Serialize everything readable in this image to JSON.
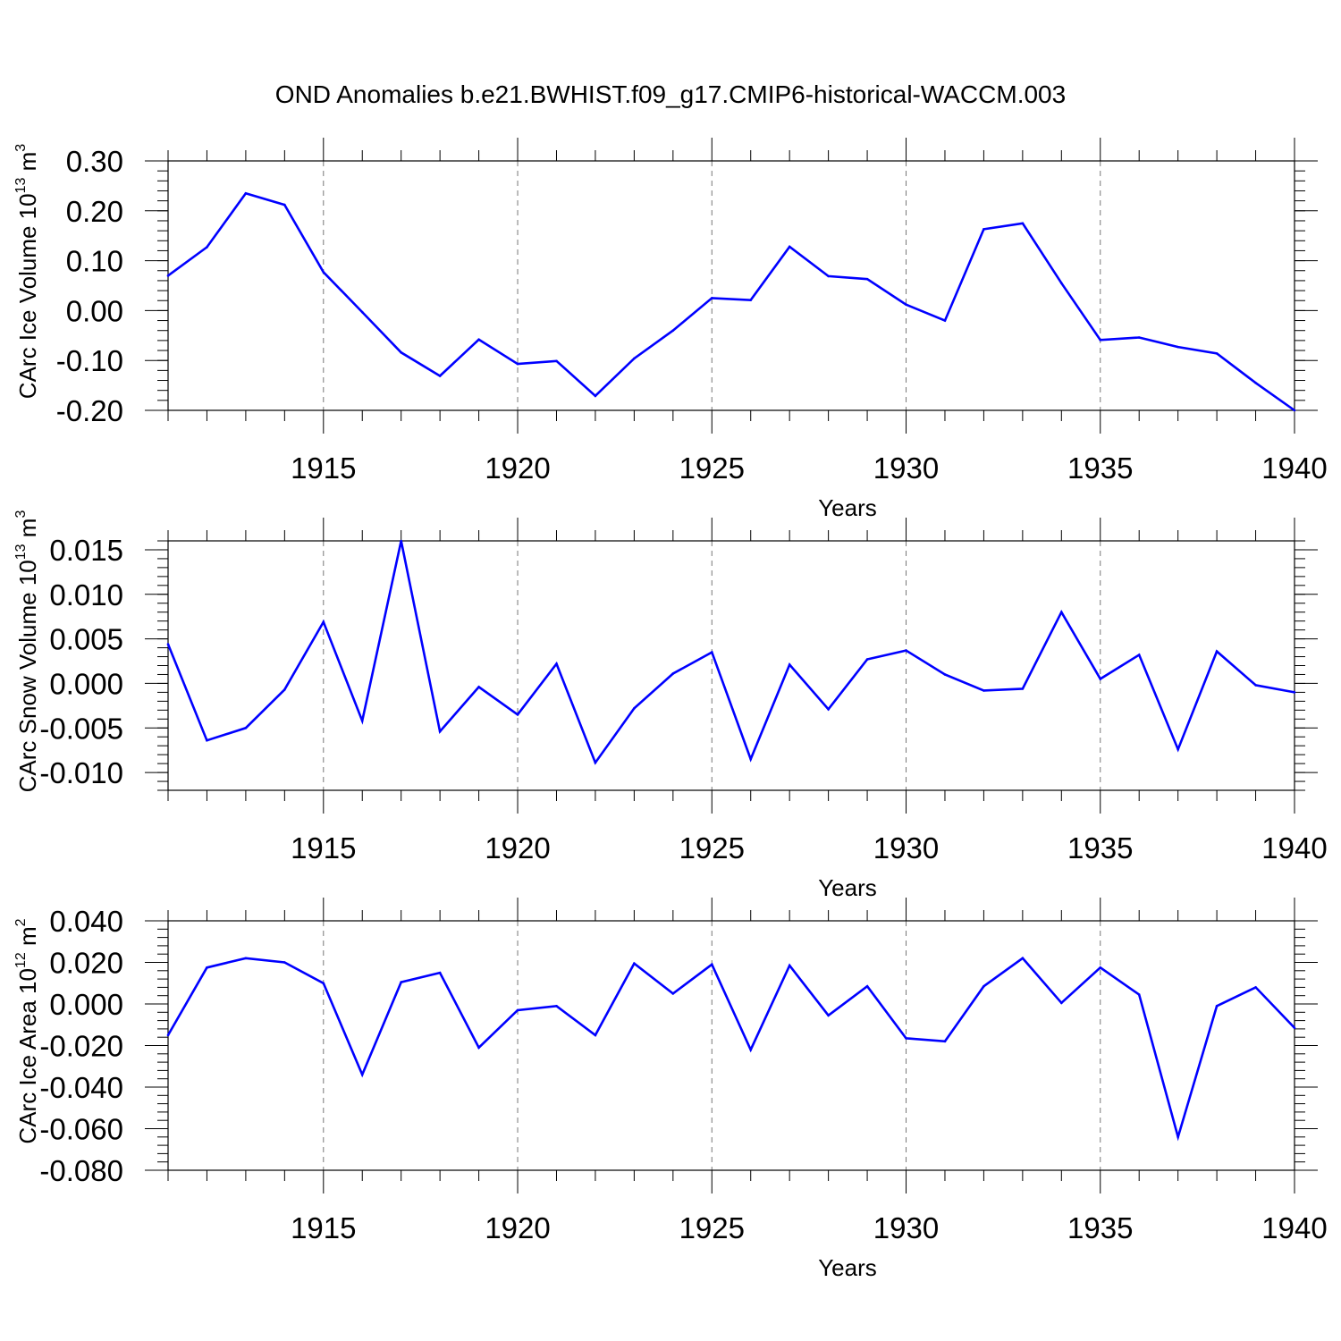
{
  "figure_title": "OND Anomalies b.e21.BWHIST.f09_g17.CMIP6-historical-WACCM.003",
  "line_color": "#0000ff",
  "chart_data": [
    {
      "type": "line",
      "title": "OND Anomalies b.e21.BWHIST.f09_g17.CMIP6-historical-WACCM.003",
      "xlabel": "Years",
      "ylabel": "CArc Ice Volume 10",
      "ylabel_exponent": "13",
      "ylabel_unit": " m",
      "ylabel_unit_exponent": "3",
      "xlim": [
        1911,
        1940
      ],
      "ylim": [
        -0.2,
        0.3
      ],
      "xticks": [
        1915,
        1920,
        1925,
        1930,
        1935,
        1940
      ],
      "xtick_labels": [
        "1915",
        "1920",
        "1925",
        "1930",
        "1935",
        "1940"
      ],
      "yticks": [
        -0.2,
        -0.1,
        0.0,
        0.1,
        0.2,
        0.3
      ],
      "ytick_labels": [
        "-0.20",
        "-0.10",
        "0.00",
        "0.10",
        "0.20",
        "0.30"
      ],
      "x": [
        1911,
        1912,
        1913,
        1914,
        1915,
        1916,
        1917,
        1918,
        1919,
        1920,
        1921,
        1922,
        1923,
        1924,
        1925,
        1926,
        1927,
        1928,
        1929,
        1930,
        1931,
        1932,
        1933,
        1934,
        1935,
        1936,
        1937,
        1938,
        1939,
        1940
      ],
      "values": [
        0.07,
        0.127,
        0.235,
        0.212,
        0.077,
        -0.003,
        -0.084,
        -0.131,
        -0.058,
        -0.107,
        -0.101,
        -0.171,
        -0.096,
        -0.04,
        0.025,
        0.021,
        0.128,
        0.069,
        0.063,
        0.012,
        -0.02,
        0.163,
        0.175,
        0.055,
        -0.059,
        -0.054,
        -0.073,
        -0.086,
        -0.145,
        -0.2
      ]
    },
    {
      "type": "line",
      "xlabel": "Years",
      "ylabel": "CArc Snow Volume 10",
      "ylabel_exponent": "13",
      "ylabel_unit": " m",
      "ylabel_unit_exponent": "3",
      "xlim": [
        1911,
        1940
      ],
      "ylim": [
        -0.012,
        0.016
      ],
      "xticks": [
        1915,
        1920,
        1925,
        1930,
        1935,
        1940
      ],
      "xtick_labels": [
        "1915",
        "1920",
        "1925",
        "1930",
        "1935",
        "1940"
      ],
      "yticks": [
        -0.01,
        -0.005,
        0.0,
        0.005,
        0.01,
        0.015
      ],
      "ytick_labels": [
        "-0.010",
        "-0.005",
        "0.000",
        "0.005",
        "0.010",
        "0.015"
      ],
      "x": [
        1911,
        1912,
        1913,
        1914,
        1915,
        1916,
        1917,
        1918,
        1919,
        1920,
        1921,
        1922,
        1923,
        1924,
        1925,
        1926,
        1927,
        1928,
        1929,
        1930,
        1931,
        1932,
        1933,
        1934,
        1935,
        1936,
        1937,
        1938,
        1939,
        1940
      ],
      "values": [
        0.0044,
        -0.0064,
        -0.005,
        -0.0007,
        0.0069,
        -0.0042,
        0.016,
        -0.0054,
        -0.0004,
        -0.0035,
        0.0022,
        -0.0089,
        -0.0028,
        0.0011,
        0.0035,
        -0.0085,
        0.0021,
        -0.0029,
        0.0027,
        0.0037,
        0.001,
        -0.0008,
        -0.0006,
        0.008,
        0.0005,
        0.0032,
        -0.0074,
        0.0036,
        -0.0002,
        -0.001
      ]
    },
    {
      "type": "line",
      "xlabel": "Years",
      "ylabel": "CArc Ice Area 10",
      "ylabel_exponent": "12",
      "ylabel_unit": " m",
      "ylabel_unit_exponent": "2",
      "xlim": [
        1911,
        1940
      ],
      "ylim": [
        -0.08,
        0.04
      ],
      "xticks": [
        1915,
        1920,
        1925,
        1930,
        1935,
        1940
      ],
      "xtick_labels": [
        "1915",
        "1920",
        "1925",
        "1930",
        "1935",
        "1940"
      ],
      "yticks": [
        -0.08,
        -0.06,
        -0.04,
        -0.02,
        0.0,
        0.02,
        0.04
      ],
      "ytick_labels": [
        "-0.080",
        "-0.060",
        "-0.040",
        "-0.020",
        "0.000",
        "0.020",
        "0.040"
      ],
      "x": [
        1911,
        1912,
        1913,
        1914,
        1915,
        1916,
        1917,
        1918,
        1919,
        1920,
        1921,
        1922,
        1923,
        1924,
        1925,
        1926,
        1927,
        1928,
        1929,
        1930,
        1931,
        1932,
        1933,
        1934,
        1935,
        1936,
        1937,
        1938,
        1939,
        1940
      ],
      "values": [
        -0.015,
        0.0175,
        0.022,
        0.02,
        0.01,
        -0.034,
        0.0105,
        0.015,
        -0.021,
        -0.003,
        -0.001,
        -0.015,
        0.0195,
        0.005,
        0.019,
        -0.022,
        0.0185,
        -0.0055,
        0.0085,
        -0.0165,
        -0.018,
        0.0085,
        0.022,
        0.0005,
        0.0175,
        0.0045,
        -0.064,
        -0.001,
        0.008,
        -0.0115
      ]
    }
  ]
}
